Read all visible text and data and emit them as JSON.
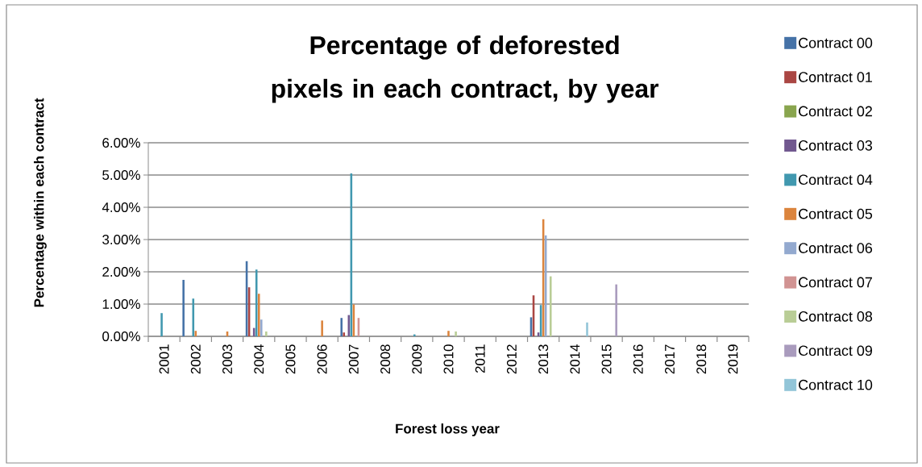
{
  "chart_data": {
    "type": "bar",
    "title": "Percentage of deforested pixels in each contract, by year",
    "xlabel": "Forest loss year",
    "ylabel": "Percentage within each contract",
    "categories": [
      "2001",
      "2002",
      "2003",
      "2004",
      "2005",
      "2006",
      "2007",
      "2008",
      "2009",
      "2010",
      "2011",
      "2012",
      "2013",
      "2014",
      "2015",
      "2016",
      "2017",
      "2018",
      "2019"
    ],
    "series": [
      {
        "name": "Contract 00",
        "color": "#4572a7",
        "values": [
          0,
          1.75,
          0,
          2.33,
          0,
          0,
          0.57,
          0,
          0,
          0,
          0,
          0,
          0.59,
          0,
          0,
          0,
          0,
          0,
          0
        ]
      },
      {
        "name": "Contract 01",
        "color": "#aa4643",
        "values": [
          0,
          0,
          0,
          1.52,
          0,
          0,
          0.12,
          0,
          0,
          0,
          0,
          0,
          1.27,
          0,
          0,
          0,
          0,
          0,
          0
        ]
      },
      {
        "name": "Contract 02",
        "color": "#89a54e",
        "values": [
          0,
          0,
          0,
          0,
          0,
          0,
          0,
          0,
          0,
          0,
          0,
          0,
          0,
          0,
          0,
          0,
          0,
          0,
          0
        ]
      },
      {
        "name": "Contract 03",
        "color": "#71588f",
        "values": [
          0,
          0,
          0,
          0.26,
          0,
          0,
          0.66,
          0,
          0,
          0,
          0,
          0,
          0.12,
          0,
          0,
          0,
          0,
          0,
          0
        ]
      },
      {
        "name": "Contract 04",
        "color": "#4198af",
        "values": [
          0.72,
          1.17,
          0,
          2.07,
          0,
          0,
          5.05,
          0,
          0.06,
          0,
          0,
          0,
          0.97,
          0,
          0,
          0,
          0,
          0,
          0
        ]
      },
      {
        "name": "Contract 05",
        "color": "#db843d",
        "values": [
          0,
          0.17,
          0.15,
          1.32,
          0,
          0.49,
          0.99,
          0,
          0,
          0.17,
          0,
          0,
          3.63,
          0,
          0,
          0,
          0,
          0,
          0
        ]
      },
      {
        "name": "Contract 06",
        "color": "#93a9cf",
        "values": [
          0,
          0,
          0,
          0.52,
          0,
          0,
          0,
          0,
          0,
          0,
          0,
          0,
          3.13,
          0,
          0,
          0,
          0,
          0,
          0
        ]
      },
      {
        "name": "Contract 07",
        "color": "#d19392",
        "values": [
          0,
          0,
          0,
          0,
          0,
          0,
          0.57,
          0,
          0,
          0,
          0,
          0,
          0,
          0,
          0,
          0,
          0,
          0,
          0
        ]
      },
      {
        "name": "Contract 08",
        "color": "#b9cd96",
        "values": [
          0,
          0,
          0,
          0.15,
          0,
          0,
          0,
          0,
          0,
          0.15,
          0,
          0,
          1.86,
          0,
          0,
          0,
          0,
          0,
          0
        ]
      },
      {
        "name": "Contract 09",
        "color": "#a99bbd",
        "values": [
          0,
          0,
          0,
          0,
          0,
          0,
          0,
          0,
          0,
          0,
          0,
          0,
          0,
          0,
          1.61,
          0,
          0,
          0,
          0
        ]
      },
      {
        "name": "Contract 10",
        "color": "#92c5d8",
        "values": [
          0,
          0,
          0,
          0,
          0,
          0,
          0,
          0,
          0,
          0,
          0,
          0,
          0,
          0.43,
          0,
          0,
          0,
          0,
          0
        ]
      }
    ],
    "ylim": [
      0,
      6
    ],
    "yticks": [
      {
        "value": 0,
        "label": "0.00%"
      },
      {
        "value": 1,
        "label": "1.00%"
      },
      {
        "value": 2,
        "label": "2.00%"
      },
      {
        "value": 3,
        "label": "3.00%"
      },
      {
        "value": 4,
        "label": "4.00%"
      },
      {
        "value": 5,
        "label": "5.00%"
      },
      {
        "value": 6,
        "label": "6.00%"
      }
    ],
    "grid": "y",
    "legend": "right"
  }
}
